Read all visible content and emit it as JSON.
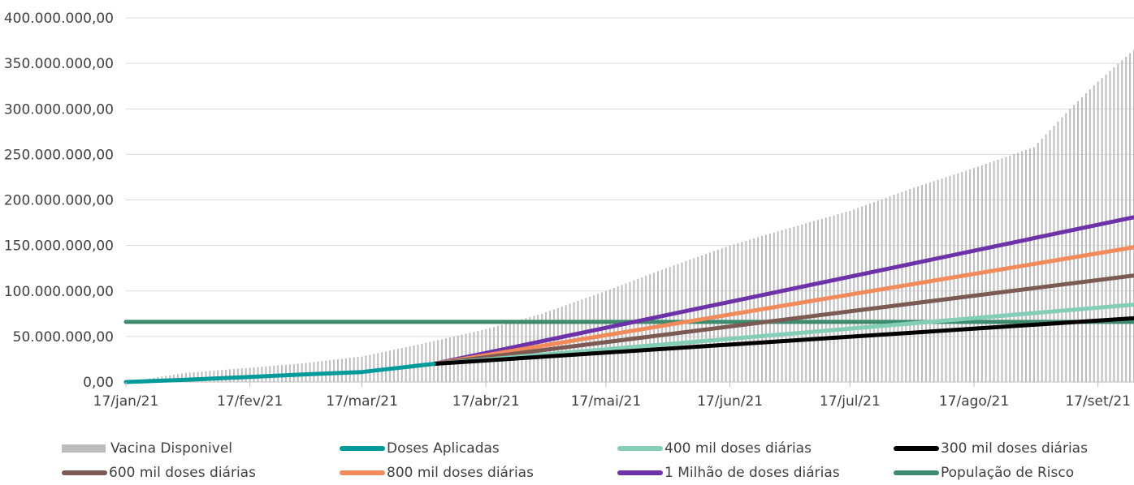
{
  "chart_data": {
    "type": "bar+line",
    "title": "",
    "xlabel": "",
    "ylabel": "",
    "ylim": [
      0,
      400000000
    ],
    "y_ticks": [
      "0,00",
      "50.000.000,00",
      "100.000.000,00",
      "150.000.000,00",
      "200.000.000,00",
      "250.000.000,00",
      "300.000.000,00",
      "350.000.000,00",
      "400.000.000,00"
    ],
    "x_range": [
      "2021-01-17",
      "2021-09-26"
    ],
    "x_ticks": [
      {
        "date": "2021-01-17",
        "label": "17/jan/21"
      },
      {
        "date": "2021-02-17",
        "label": "17/fev/21"
      },
      {
        "date": "2021-03-17",
        "label": "17/mar/21"
      },
      {
        "date": "2021-04-17",
        "label": "17/abr/21"
      },
      {
        "date": "2021-05-17",
        "label": "17/mai/21"
      },
      {
        "date": "2021-06-17",
        "label": "17/jun/21"
      },
      {
        "date": "2021-07-17",
        "label": "17/jul/21"
      },
      {
        "date": "2021-08-17",
        "label": "17/ago/21"
      },
      {
        "date": "2021-09-17",
        "label": "17/set/21"
      }
    ],
    "grid": true,
    "legend_position": "bottom",
    "series": [
      {
        "name": "Vacina Disponivel",
        "type": "bar",
        "color": "#bdbdbd",
        "points": [
          [
            "2021-01-17",
            0
          ],
          [
            "2021-02-01",
            10000000
          ],
          [
            "2021-03-01",
            20000000
          ],
          [
            "2021-03-17",
            28000000
          ],
          [
            "2021-04-01",
            42000000
          ],
          [
            "2021-04-17",
            58000000
          ],
          [
            "2021-05-01",
            75000000
          ],
          [
            "2021-05-17",
            100000000
          ],
          [
            "2021-06-01",
            125000000
          ],
          [
            "2021-06-17",
            150000000
          ],
          [
            "2021-07-01",
            168000000
          ],
          [
            "2021-07-17",
            188000000
          ],
          [
            "2021-08-01",
            212000000
          ],
          [
            "2021-08-17",
            235000000
          ],
          [
            "2021-09-01",
            258000000
          ],
          [
            "2021-09-10",
            300000000
          ],
          [
            "2021-09-17",
            330000000
          ],
          [
            "2021-09-26",
            365000000
          ]
        ]
      },
      {
        "name": "Doses Aplicadas",
        "type": "line",
        "color": "#009a9a",
        "points": [
          [
            "2021-01-17",
            0
          ],
          [
            "2021-02-01",
            2500000
          ],
          [
            "2021-02-17",
            5500000
          ],
          [
            "2021-03-01",
            8000000
          ],
          [
            "2021-03-17",
            11000000
          ],
          [
            "2021-03-25",
            15000000
          ],
          [
            "2021-04-04",
            20000000
          ]
        ]
      },
      {
        "name": "400 mil doses diárias",
        "type": "line",
        "color": "#84cdb7",
        "points": [
          [
            "2021-04-04",
            20000000
          ],
          [
            "2021-09-26",
            85000000
          ]
        ]
      },
      {
        "name": "300 mil doses diárias",
        "type": "line",
        "color": "#000000",
        "points": [
          [
            "2021-04-04",
            20000000
          ],
          [
            "2021-09-26",
            70000000
          ]
        ]
      },
      {
        "name": "600 mil doses diárias",
        "type": "line",
        "color": "#7a5a52",
        "points": [
          [
            "2021-04-04",
            20000000
          ],
          [
            "2021-09-26",
            117000000
          ]
        ]
      },
      {
        "name": "800 mil doses diárias",
        "type": "line",
        "color": "#f28b5c",
        "points": [
          [
            "2021-04-04",
            20000000
          ],
          [
            "2021-09-26",
            148000000
          ]
        ]
      },
      {
        "name": "1 Milhão de doses diárias",
        "type": "line",
        "color": "#6d32a8",
        "points": [
          [
            "2021-04-04",
            20000000
          ],
          [
            "2021-09-26",
            181000000
          ]
        ]
      },
      {
        "name": "População de Risco",
        "type": "line",
        "color": "#3d8a6e",
        "points": [
          [
            "2021-01-17",
            66000000
          ],
          [
            "2021-09-26",
            66000000
          ]
        ]
      }
    ]
  }
}
